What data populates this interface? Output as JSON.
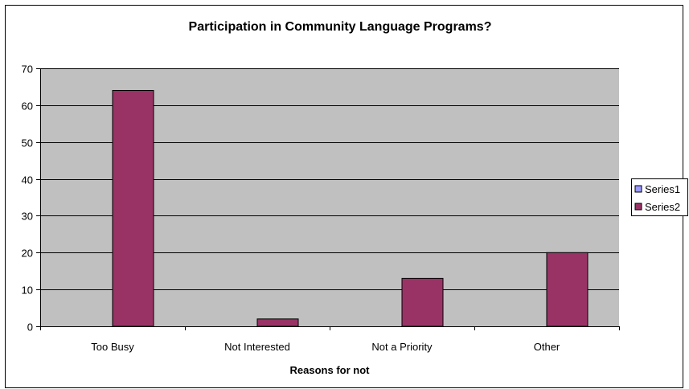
{
  "colors": {
    "plot_background": "#c0c0c0",
    "gridline": "#000000",
    "series1": "#9999ff",
    "series2": "#993366",
    "frame": "#000000"
  },
  "chart_data": {
    "type": "bar",
    "title": "Participation in Community Language Programs?",
    "xlabel": "Reasons for not",
    "ylabel": "",
    "categories": [
      "Too Busy",
      "Not Interested",
      "Not a Priority",
      "Other"
    ],
    "series": [
      {
        "name": "Series1",
        "values": [
          0,
          0,
          0,
          0
        ]
      },
      {
        "name": "Series2",
        "values": [
          64,
          2,
          13,
          20
        ]
      }
    ],
    "ylim": [
      0,
      70
    ],
    "yticks": [
      0,
      10,
      20,
      30,
      40,
      50,
      60,
      70
    ],
    "grid": true,
    "legend_position": "right"
  }
}
